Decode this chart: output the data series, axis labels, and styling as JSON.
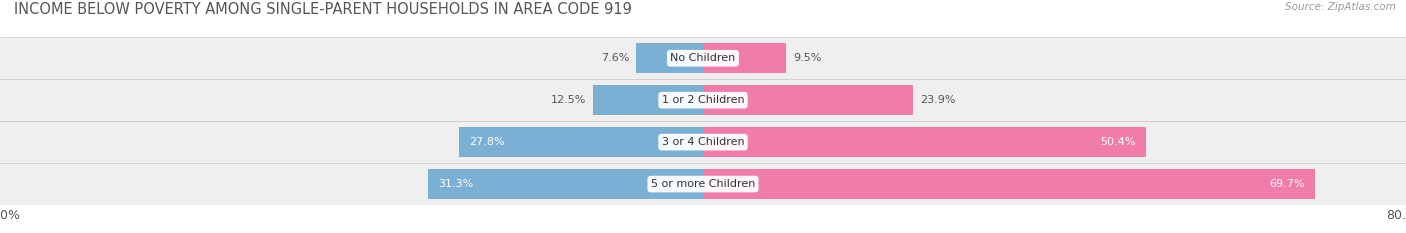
{
  "title": "INCOME BELOW POVERTY AMONG SINGLE-PARENT HOUSEHOLDS IN AREA CODE 919",
  "source": "Source: ZipAtlas.com",
  "categories": [
    "No Children",
    "1 or 2 Children",
    "3 or 4 Children",
    "5 or more Children"
  ],
  "single_father": [
    7.6,
    12.5,
    27.8,
    31.3
  ],
  "single_mother": [
    9.5,
    23.9,
    50.4,
    69.7
  ],
  "father_color": "#7bafd4",
  "mother_color": "#f07caa",
  "bg_row_light": "#efefef",
  "bg_row_dark": "#e4e4e4",
  "row_border_color": "#cccccc",
  "xlim_min": -80.0,
  "xlim_max": 80.0,
  "bar_height": 0.72,
  "title_fontsize": 10.5,
  "tick_fontsize": 9,
  "legend_fontsize": 9,
  "category_fontsize": 8,
  "value_fontsize": 8,
  "value_color_outside": "#555555",
  "value_color_inside": "#ffffff"
}
